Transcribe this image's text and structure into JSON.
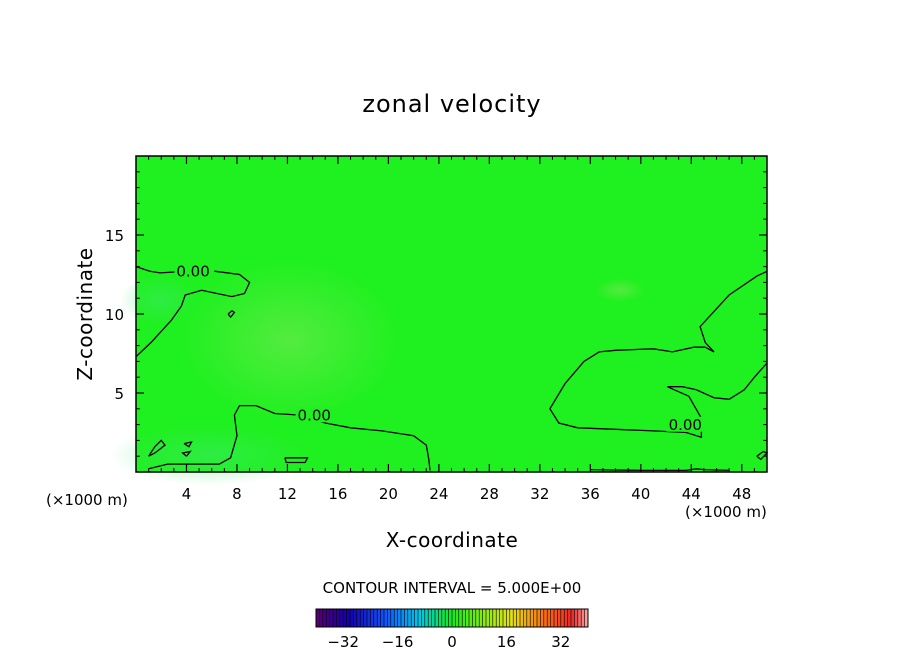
{
  "chart_data": {
    "type": "contour",
    "title": "zonal velocity",
    "xlabel": "X-coordinate",
    "ylabel": "Z-coordinate",
    "x_unit_label": "(×1000 m)",
    "x_unit_label_right": "(×1000 m)",
    "xlim": [
      0,
      50
    ],
    "ylim": [
      0,
      20
    ],
    "x_ticks": [
      4,
      8,
      12,
      16,
      20,
      24,
      28,
      32,
      36,
      40,
      44,
      48
    ],
    "y_ticks": [
      5,
      10,
      15
    ],
    "contour_labels": [
      "0.00",
      "0.00",
      "0.00"
    ],
    "contour_interval_text": "CONTOUR INTERVAL = 5.000E+00",
    "colorbar": {
      "min": -40,
      "max": 40,
      "ticks": [
        -32,
        -16,
        0,
        16,
        32
      ]
    },
    "field_color": "#1ff01f",
    "contours": [
      {
        "name": "zero-upper-left",
        "points": [
          [
            0,
            7.3
          ],
          [
            1.2,
            8.2
          ],
          [
            2.8,
            9.6
          ],
          [
            3.6,
            10.5
          ],
          [
            3.9,
            11.2
          ],
          [
            5.2,
            11.5
          ],
          [
            7.6,
            11.1
          ],
          [
            8.6,
            11.3
          ],
          [
            9,
            12
          ],
          [
            8.2,
            12.5
          ],
          [
            6.3,
            12.7
          ],
          [
            4,
            12.7
          ],
          [
            1.9,
            12.6
          ],
          [
            1.1,
            12.7
          ],
          [
            0,
            13.0
          ]
        ]
      },
      {
        "name": "zero-lower-left",
        "points": [
          [
            1,
            0.2
          ],
          [
            2.5,
            0.5
          ],
          [
            6.3,
            0.5
          ],
          [
            6.6,
            0.5
          ],
          [
            7.5,
            0.9
          ],
          [
            8,
            2.3
          ],
          [
            7.8,
            3.6
          ],
          [
            8.2,
            4.2
          ],
          [
            9.5,
            4.2
          ],
          [
            11,
            3.7
          ],
          [
            13,
            3.6
          ],
          [
            15,
            3.1
          ],
          [
            17,
            2.8
          ],
          [
            19.5,
            2.6
          ],
          [
            22,
            2.3
          ],
          [
            23,
            1.7
          ],
          [
            23.2,
            0.8
          ],
          [
            23.3,
            0.1
          ]
        ]
      },
      {
        "name": "zero-right",
        "points": [
          [
            47,
            0.1
          ],
          [
            45,
            0.15
          ],
          [
            44.4,
            0.2
          ],
          [
            43.6,
            0.1
          ],
          [
            40,
            0.1
          ],
          [
            36,
            0.15
          ]
        ]
      },
      {
        "name": "zero-right-lobe",
        "points": [
          [
            50,
            12.7
          ],
          [
            49.2,
            12.4
          ],
          [
            47,
            11.2
          ],
          [
            44.7,
            9.2
          ],
          [
            45.1,
            8.2
          ],
          [
            45.8,
            7.6
          ],
          [
            45.1,
            7.9
          ],
          [
            44.2,
            7.9
          ],
          [
            42.5,
            7.6
          ],
          [
            41,
            7.8
          ],
          [
            38,
            7.7
          ],
          [
            36.7,
            7.6
          ],
          [
            35.5,
            7.0
          ],
          [
            34,
            5.6
          ],
          [
            32.8,
            4.0
          ],
          [
            33.5,
            3.1
          ],
          [
            35,
            2.8
          ],
          [
            38,
            2.7
          ],
          [
            41,
            2.6
          ],
          [
            43.6,
            2.5
          ],
          [
            44.8,
            2.2
          ],
          [
            44.8,
            3.4
          ],
          [
            43.8,
            4.8
          ],
          [
            42.1,
            5.4
          ],
          [
            43.3,
            5.4
          ],
          [
            44.4,
            5.2
          ],
          [
            45.8,
            4.7
          ],
          [
            47,
            4.6
          ],
          [
            48.2,
            5.2
          ],
          [
            49,
            6
          ],
          [
            50,
            6.9
          ]
        ]
      },
      {
        "name": "zero-small-1",
        "points": [
          [
            7.3,
            10.0
          ],
          [
            7.6,
            10.2
          ],
          [
            7.8,
            10.1
          ],
          [
            7.5,
            9.8
          ],
          [
            7.3,
            10.0
          ]
        ]
      },
      {
        "name": "zero-small-2",
        "points": [
          [
            1,
            1.0
          ],
          [
            1.5,
            1.6
          ],
          [
            2,
            2.0
          ],
          [
            2.3,
            1.7
          ],
          [
            1.5,
            1.2
          ],
          [
            1,
            1.0
          ]
        ]
      },
      {
        "name": "zero-small-3",
        "points": [
          [
            3.8,
            1.8
          ],
          [
            4.4,
            1.9
          ],
          [
            4.2,
            1.6
          ],
          [
            3.8,
            1.8
          ]
        ]
      },
      {
        "name": "zero-small-4",
        "points": [
          [
            4.0,
            1.0
          ],
          [
            4.3,
            1.3
          ],
          [
            3.7,
            1.2
          ],
          [
            4.0,
            1.0
          ]
        ]
      },
      {
        "name": "zero-small-5",
        "points": [
          [
            11.8,
            0.9
          ],
          [
            13.6,
            0.9
          ],
          [
            13.4,
            0.6
          ],
          [
            11.9,
            0.6
          ],
          [
            11.8,
            0.9
          ]
        ]
      },
      {
        "name": "zero-small-6",
        "points": [
          [
            49.2,
            1.0
          ],
          [
            49.7,
            1.3
          ],
          [
            50,
            1.2
          ],
          [
            49.5,
            0.8
          ],
          [
            49.2,
            1.0
          ]
        ]
      }
    ],
    "label_positions": [
      [
        3.2,
        12.5
      ],
      [
        12.8,
        3.4
      ],
      [
        42.2,
        2.8
      ]
    ]
  }
}
